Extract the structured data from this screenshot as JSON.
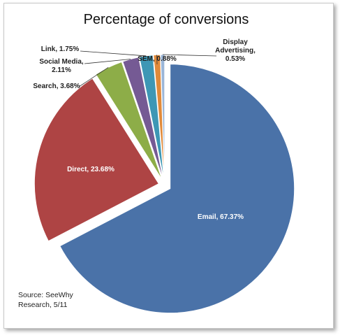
{
  "chart_data": {
    "type": "pie",
    "title": "Percentage of conversions",
    "start_angle_deg": 0,
    "direction": "clockwise",
    "exploded": true,
    "slices": [
      {
        "category": "Email",
        "value": 67.37,
        "label": "Email, 67.37%",
        "color": "#4a72a8",
        "label_inside": true
      },
      {
        "category": "Direct",
        "value": 23.68,
        "label": "Direct, 23.68%",
        "color": "#ae4444",
        "label_inside": true
      },
      {
        "category": "Search",
        "value": 3.68,
        "label": "Search, 3.68%",
        "color": "#8dad48",
        "label_inside": false
      },
      {
        "category": "Social Media",
        "value": 2.11,
        "label_lines": [
          "Social Media,",
          "2.11%"
        ],
        "color": "#755a94",
        "label_inside": false
      },
      {
        "category": "Link",
        "value": 1.75,
        "label": "Link, 1.75%",
        "color": "#3d97b5",
        "label_inside": false
      },
      {
        "category": "SEM",
        "value": 0.88,
        "label": "SEM, 0.88%",
        "color": "#e08a3a",
        "label_inside": false
      },
      {
        "category": "Display Advertising",
        "value": 0.53,
        "label_lines": [
          "Display",
          "Advertising,",
          "0.53%"
        ],
        "color": "#9bb6d8",
        "label_inside": false
      }
    ],
    "annotation_lines": [
      "Source: SeeWhy",
      "Research, 5/11"
    ]
  }
}
